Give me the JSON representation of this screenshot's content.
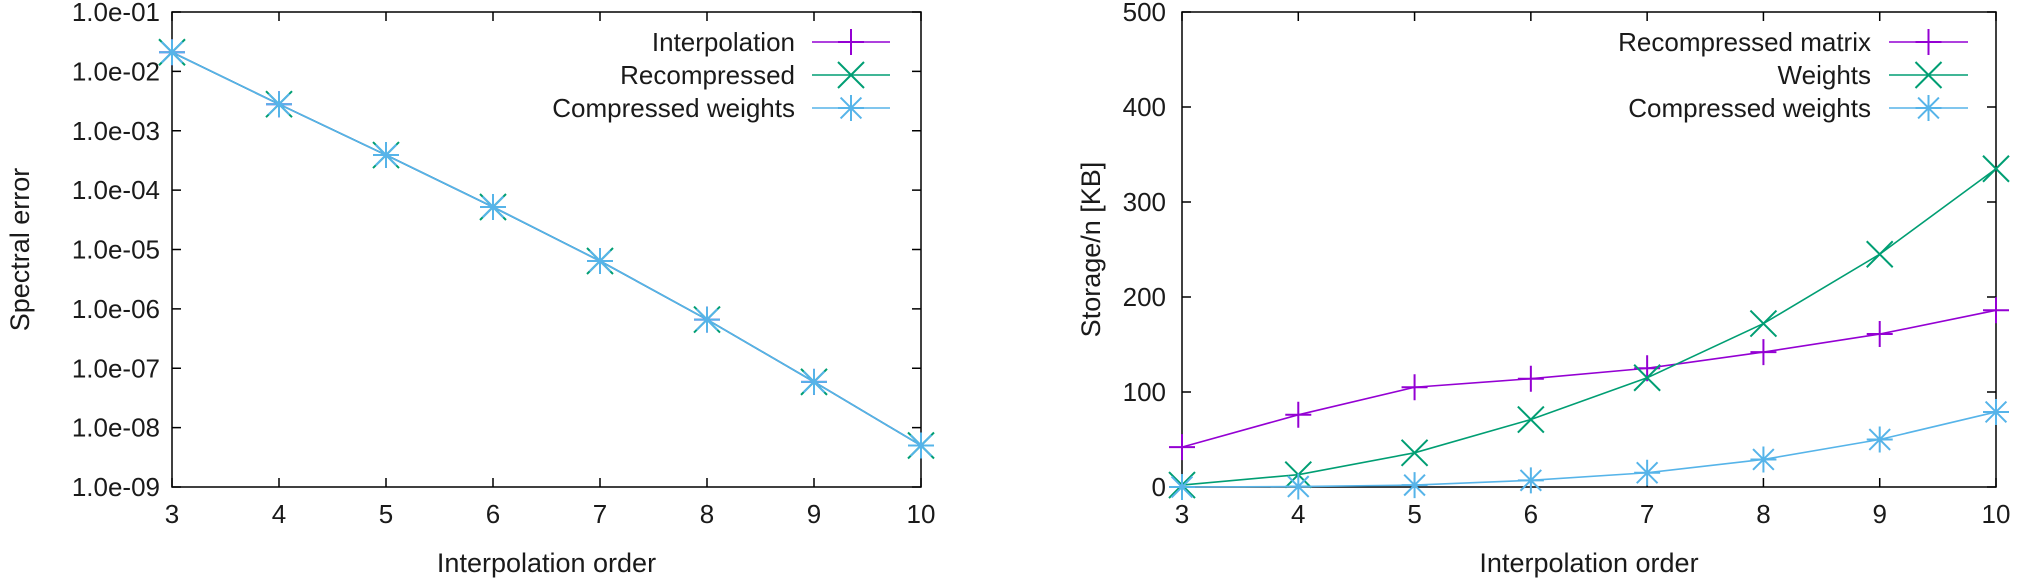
{
  "chart_data": [
    {
      "type": "line",
      "title": "",
      "xlabel": "Interpolation order",
      "ylabel": "Spectral error",
      "xscale": "linear",
      "yscale": "log",
      "xlim": [
        3,
        10
      ],
      "ylim": [
        1e-09,
        0.1
      ],
      "x_ticks": [
        3,
        4,
        5,
        6,
        7,
        8,
        9,
        10
      ],
      "x_tick_labels": [
        "3",
        "4",
        "5",
        "6",
        "7",
        "8",
        "9",
        "10"
      ],
      "y_ticks": [
        0.1,
        0.01,
        0.001,
        0.0001,
        1e-05,
        1e-06,
        1e-07,
        1e-08,
        1e-09
      ],
      "y_tick_labels": [
        "1.0e-01",
        "1.0e-02",
        "1.0e-03",
        "1.0e-04",
        "1.0e-05",
        "1.0e-06",
        "1.0e-07",
        "1.0e-08",
        "1.0e-09"
      ],
      "grid": false,
      "legend_position": "top-right",
      "x": [
        3,
        4,
        5,
        6,
        7,
        8,
        9,
        10
      ],
      "series": [
        {
          "name": "Interpolation",
          "color": "#9400d3",
          "marker": "plus",
          "values": [
            0.021,
            0.0028,
            0.00039,
            5.2e-05,
            6.4e-06,
            6.6e-07,
            5.9e-08,
            5e-09
          ]
        },
        {
          "name": "Recompressed",
          "color": "#009e73",
          "marker": "cross",
          "values": [
            0.021,
            0.0028,
            0.00039,
            5.2e-05,
            6.4e-06,
            6.6e-07,
            5.9e-08,
            5e-09
          ]
        },
        {
          "name": "Compressed weights",
          "color": "#56b4e9",
          "marker": "star",
          "values": [
            0.021,
            0.0028,
            0.00039,
            5.2e-05,
            6.4e-06,
            6.6e-07,
            5.9e-08,
            5e-09
          ]
        }
      ]
    },
    {
      "type": "line",
      "title": "",
      "xlabel": "Interpolation order",
      "ylabel": "Storage/n [KB]",
      "xscale": "linear",
      "yscale": "linear",
      "xlim": [
        3,
        10
      ],
      "ylim": [
        0,
        500
      ],
      "x_ticks": [
        3,
        4,
        5,
        6,
        7,
        8,
        9,
        10
      ],
      "x_tick_labels": [
        "3",
        "4",
        "5",
        "6",
        "7",
        "8",
        "9",
        "10"
      ],
      "y_ticks": [
        0,
        100,
        200,
        300,
        400,
        500
      ],
      "y_tick_labels": [
        "0",
        "100",
        "200",
        "300",
        "400",
        "500"
      ],
      "grid": false,
      "legend_position": "top-right",
      "x": [
        3,
        4,
        5,
        6,
        7,
        8,
        9,
        10
      ],
      "series": [
        {
          "name": "Recompressed matrix",
          "color": "#9400d3",
          "marker": "plus",
          "values": [
            42,
            76,
            105,
            114,
            125,
            142,
            161,
            186
          ]
        },
        {
          "name": "Weights",
          "color": "#009e73",
          "marker": "cross",
          "values": [
            2,
            13,
            36,
            71,
            115,
            172,
            245,
            335
          ]
        },
        {
          "name": "Compressed weights",
          "color": "#56b4e9",
          "marker": "star",
          "values": [
            0,
            0.5,
            2,
            7,
            15,
            29,
            50,
            79
          ]
        }
      ]
    }
  ]
}
